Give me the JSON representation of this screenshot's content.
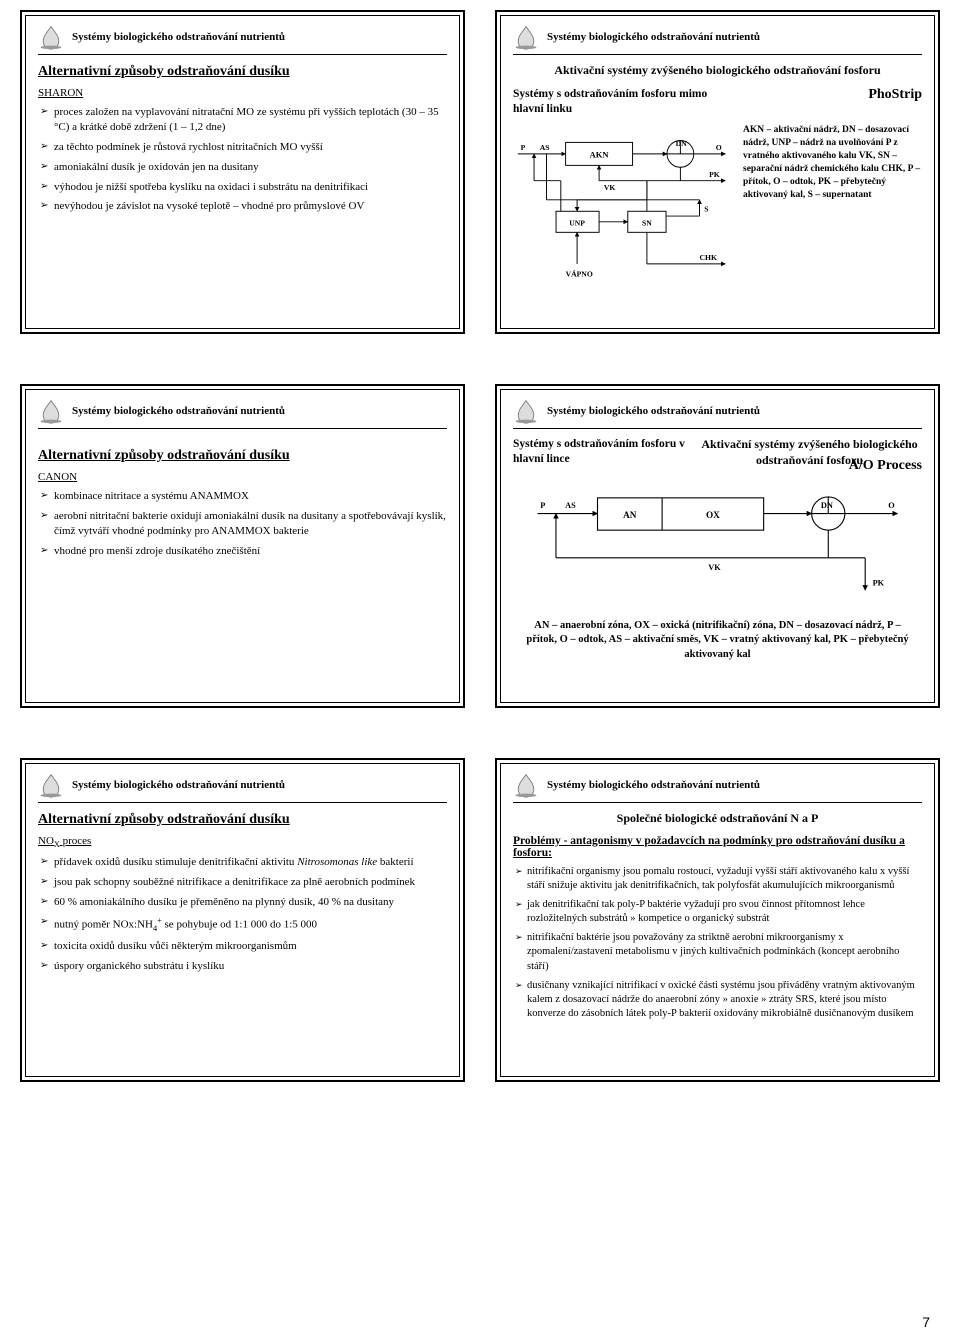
{
  "common": {
    "header": "Systémy biologického odstraňování nutrientů",
    "logoStroke": "#888888",
    "logoFill": "#cccccc"
  },
  "slide1": {
    "title": "Alternativní způsoby odstraňování dusíku",
    "subtitle": "SHARON",
    "bullets": [
      "proces založen na vyplavování nitratační MO ze systému při vyšších teplotách (30 – 35 °C) a krátké době zdržení (1 – 1,2 dne)",
      "za těchto podmínek je růstová rychlost nitritačních MO vyšší",
      "amoniakální dusík je oxidován jen na dusitany",
      "výhodou je nižší spotřeba kyslíku na oxidaci i substrátu na denitrifikaci",
      "nevýhodou je závislot na vysoké teplotě – vhodné pro průmyslové OV"
    ]
  },
  "slide2": {
    "centerTitle": "Aktivační systémy zvýšeného biologického odstraňování fosforu",
    "leftHead": "Systémy s odstraňováním fosforu mimo hlavní linku",
    "rightHead": "PhoStrip",
    "legend": "AKN – aktivační nádrž, DN – dosazovací nádrž, UNP – nádrž na uvolňování P z vratného aktivovaného kalu VK, SN – separační nádrž chemického kalu CHK, P – přítok, O – odtok, PK – přebytečný aktivovaný kal, S – supernatant",
    "diagram": {
      "labels": {
        "P": "P",
        "AS": "AS",
        "AKN": "AKN",
        "DN": "DN",
        "O": "O",
        "PK": "PK",
        "S": "S",
        "VK": "VK",
        "UNP": "UNP",
        "SN": "SN",
        "VAPNO": "VÁPNO",
        "CHK": "CHK"
      },
      "colors": {
        "stroke": "#000000",
        "fill": "#ffffff"
      }
    }
  },
  "slide3": {
    "title": "Alternativní způsoby odstraňování dusíku",
    "subtitle": "CANON",
    "bullets": [
      "kombinace nitritace a systému ANAMMOX",
      "aerobní nitritační bakterie oxidují amoniakální dusík na dusitany a spotřebovávají kyslík, čímž vytváří vhodné podmínky pro ANAMMOX bakterie",
      "vhodné pro menší zdroje dusíkatého znečištění"
    ]
  },
  "slide4": {
    "centerTitle": "Aktivační systémy zvýšeného biologického odstraňování fosforu",
    "leftHead": "Systémy s odstraňováním fosforu v hlavní lince",
    "rightHead": "A/O Process",
    "diagram": {
      "labels": {
        "P": "P",
        "AS": "AS",
        "AN": "AN",
        "OX": "OX",
        "DN": "DN",
        "O": "O",
        "VK": "VK",
        "PK": "PK"
      },
      "colors": {
        "stroke": "#000000",
        "fill": "#ffffff"
      }
    },
    "footnote": "AN – anaerobní zóna, OX – oxická (nitrifikační) zóna, DN – dosazovací nádrž, P – přítok, O – odtok, AS – aktivační směs, VK – vratný aktivovaný kal, PK – přebytečný aktivovaný kal"
  },
  "slide5": {
    "title": "Alternativní způsoby odstraňování dusíku",
    "subtitle": "NOₓ proces",
    "bullets": [
      "přídavek oxidů dusíku stimuluje denitrifikační aktivitu <span class=\"italic\">Nitrosomonas like</span> bakterií",
      "jsou pak schopny souběžné nitrifikace a denitrifikace za plně aerobních podmínek",
      "60 % amoniakálního dusíku je přeměněno na plynný dusík, 40 % na dusitany",
      "nutný poměr NOx:NH<sub>4</sub><sup>+</sup> se pohybuje od 1:1 000 do 1:5 000",
      "toxicita oxidů dusíku vůči některým mikroorganismům",
      "úspory organického substrátu i kyslíku"
    ]
  },
  "slide6": {
    "centerTitle": "Společné biologické odstraňování N a P",
    "problemsHead": "Problémy - antagonismy v požadavcích na podmínky pro odstraňování dusíku a fosforu:",
    "bullets": [
      "nitrifikační organismy jsou pomalu rostoucí, vyžadují vyšší stáří aktivovaného kalu x vyšší stáří snižuje aktivitu jak denitrifikačních, tak polyfosfát akumulujících mikroorganismů",
      "jak denitrifikační tak poly-P baktérie vyžadují pro svou činnost přítomnost lehce rozložitelných substrátů » kompetice o organický substrát",
      "nitrifikační baktérie jsou považovány za striktně aerobní mikroorganismy x zpomalení/zastavení metabolismu v jiných kultivačních podmínkách (koncept aerobního stáří)",
      "dusičnany vznikající nitrifikací v oxické části systému jsou přiváděny vratným aktivovaným kalem z dosazovací nádrže do anaerobní zóny » anoxie » ztráty SRS, které jsou místo konverze do zásobních látek poly-P bakterií oxidovány mikrobiálně dusičnanovým dusíkem"
    ]
  },
  "pageNumber": "7"
}
